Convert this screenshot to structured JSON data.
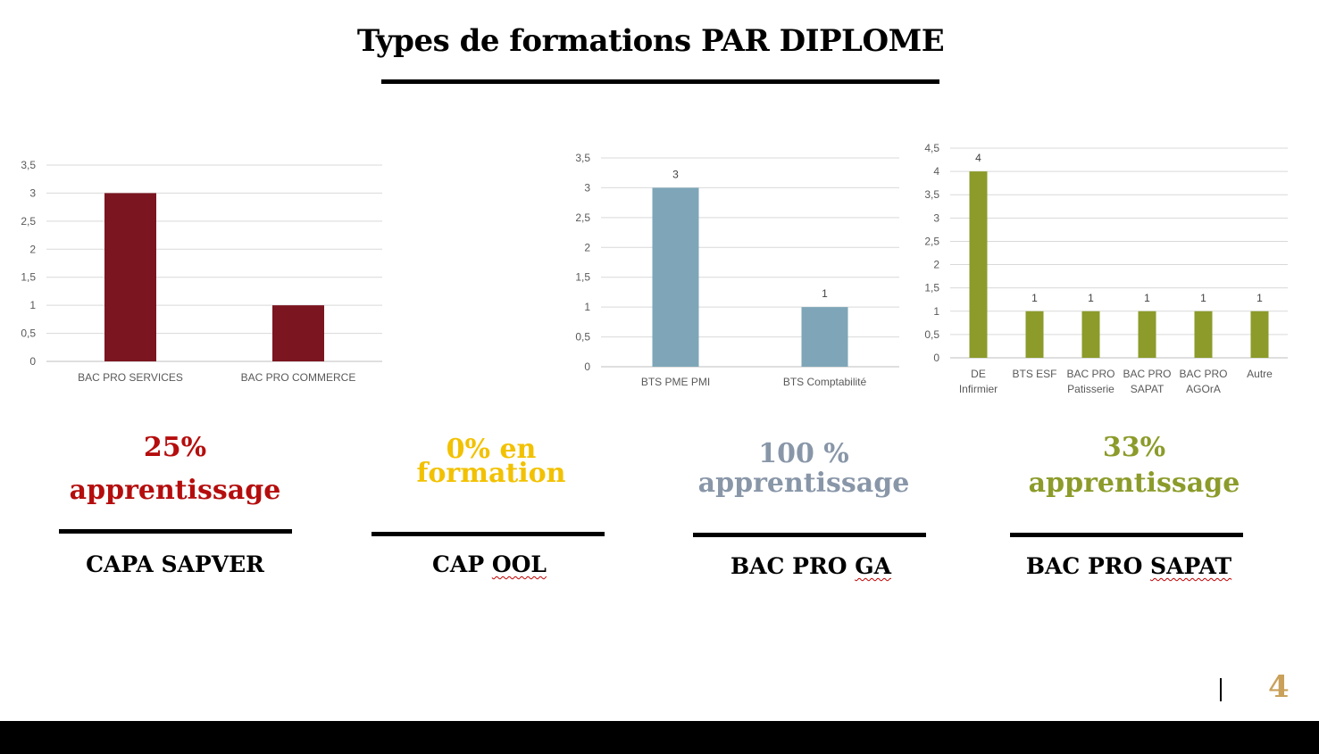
{
  "title": "Types de formations PAR DIPLOME",
  "colors": {
    "chart1": "#7b1520",
    "chart2": "#7ea6b8",
    "chart3": "#8c9b2a",
    "stat1": "#b50d0d",
    "stat2": "#f2c100",
    "stat3": "#8896a8",
    "stat4": "#8c9b2a",
    "page_number": "#c9a15a"
  },
  "chart_data": [
    {
      "type": "bar",
      "title": "",
      "xlabel": "",
      "ylabel": "",
      "categories": [
        "BAC PRO SERVICES",
        "BAC PRO COMMERCE"
      ],
      "values": [
        3,
        1
      ],
      "ylim": [
        0,
        3.5
      ],
      "yticks": [
        "0",
        "0,5",
        "1",
        "1,5",
        "2",
        "2,5",
        "3",
        "3,5"
      ],
      "data_labels": false,
      "grid": true
    },
    {
      "type": "bar",
      "title": "",
      "xlabel": "",
      "ylabel": "",
      "categories": [
        "BTS PME PMI",
        "BTS Comptabilité"
      ],
      "values": [
        3,
        1
      ],
      "ylim": [
        0,
        3.5
      ],
      "yticks": [
        "0",
        "0,5",
        "1",
        "1,5",
        "2",
        "2,5",
        "3",
        "3,5"
      ],
      "data_labels": true,
      "grid": true
    },
    {
      "type": "bar",
      "title": "",
      "xlabel": "",
      "ylabel": "",
      "categories": [
        [
          "DE",
          "Infirmier"
        ],
        [
          "BTS ESF"
        ],
        [
          "BAC PRO",
          "Patisserie"
        ],
        [
          "BAC PRO",
          "SAPAT"
        ],
        [
          "BAC PRO",
          "AGOrA"
        ],
        [
          "Autre"
        ]
      ],
      "values": [
        4,
        1,
        1,
        1,
        1,
        1
      ],
      "ylim": [
        0,
        4.5
      ],
      "yticks": [
        "0",
        "0,5",
        "1",
        "1,5",
        "2",
        "2,5",
        "3",
        "3,5",
        "4",
        "4,5"
      ],
      "data_labels": true,
      "grid": true
    }
  ],
  "sections": [
    {
      "stat": [
        "25%",
        "apprentissage"
      ],
      "label_a": "CAPA SAPVER",
      "label_b": ""
    },
    {
      "stat": [
        "0% en",
        "formation"
      ],
      "label_a": "CAP ",
      "label_b": "OOL"
    },
    {
      "stat": [
        "100 %",
        "apprentissage"
      ],
      "label_a": "BAC PRO ",
      "label_b": "GA"
    },
    {
      "stat": [
        "33%",
        "apprentissage"
      ],
      "label_a": "BAC PRO ",
      "label_b": "SAPAT"
    }
  ],
  "page_number": "4"
}
